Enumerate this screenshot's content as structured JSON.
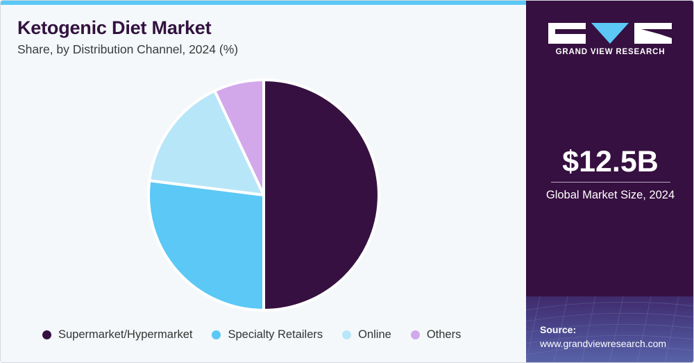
{
  "header": {
    "title": "Ketogenic Diet Market",
    "subtitle": "Share, by Distribution Channel, 2024 (%)"
  },
  "chart_data": {
    "type": "pie",
    "categories": [
      "Supermarket/Hypermarket",
      "Specialty Retailers",
      "Online",
      "Others"
    ],
    "values": [
      50,
      27,
      16,
      7
    ],
    "colors": [
      "#361040",
      "#5bc8f5",
      "#b8e6f9",
      "#d3a8ea"
    ],
    "legend_position": "bottom",
    "start_angle": "12 o'clock",
    "direction": "clockwise"
  },
  "sidebar": {
    "brand": "GRAND VIEW RESEARCH",
    "market_size": "$12.5B",
    "market_size_caption": "Global Market Size, 2024",
    "source_label": "Source:",
    "source_url": "www.grandviewresearch.com",
    "background_color": "#361040",
    "accent_color": "#5bc8f5"
  }
}
